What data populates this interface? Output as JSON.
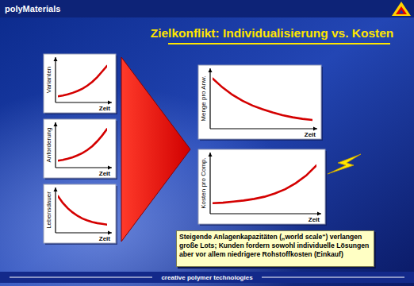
{
  "header": {
    "brand": "polyMaterials",
    "title": "Zielkonflikt: Individualisierung vs. Kosten"
  },
  "chart_data": [
    {
      "type": "line",
      "ylabel": "Varianten",
      "xlabel": "Zeit",
      "color": "#d40000",
      "tick_labels": false,
      "x": [
        0,
        1,
        2,
        3,
        4,
        5,
        6,
        7,
        8,
        9,
        10
      ],
      "xlim": [
        0,
        10
      ],
      "ylim": [
        0,
        10
      ],
      "values": [
        1,
        1.2,
        1.5,
        1.9,
        2.4,
        3,
        3.8,
        4.8,
        6,
        7.5,
        9
      ]
    },
    {
      "type": "line",
      "ylabel": "Anforderung",
      "xlabel": "Zeit",
      "color": "#d40000",
      "tick_labels": false,
      "x": [
        0,
        1,
        2,
        3,
        4,
        5,
        6,
        7,
        8,
        9,
        10
      ],
      "xlim": [
        0,
        10
      ],
      "ylim": [
        0,
        10
      ],
      "values": [
        1.2,
        1.4,
        1.7,
        2.1,
        2.6,
        3.2,
        4,
        5,
        6.3,
        7.8,
        9.5
      ]
    },
    {
      "type": "line",
      "ylabel": "Lebensdauer",
      "xlabel": "Zeit",
      "color": "#d40000",
      "tick_labels": false,
      "x": [
        0,
        1,
        2,
        3,
        4,
        5,
        6,
        7,
        8,
        9,
        10
      ],
      "xlim": [
        0,
        10
      ],
      "ylim": [
        0,
        10
      ],
      "values": [
        9,
        7.2,
        5.8,
        4.7,
        3.8,
        3.1,
        2.6,
        2.2,
        1.9,
        1.7,
        1.5
      ]
    },
    {
      "type": "line",
      "ylabel": "Menge pro Anw.",
      "xlabel": "Zeit",
      "color": "#d40000",
      "tick_labels": false,
      "x": [
        0,
        1,
        2,
        3,
        4,
        5,
        6,
        7,
        8,
        9,
        10
      ],
      "xlim": [
        0,
        10
      ],
      "ylim": [
        0,
        10
      ],
      "values": [
        9,
        7.3,
        5.9,
        4.8,
        3.9,
        3.2,
        2.6,
        2.1,
        1.7,
        1.4,
        1.2
      ]
    },
    {
      "type": "line",
      "ylabel": "Kosten pro Comp.",
      "xlabel": "Zeit",
      "color": "#d40000",
      "tick_labels": false,
      "x": [
        0,
        1,
        2,
        3,
        4,
        5,
        6,
        7,
        8,
        9,
        10
      ],
      "xlim": [
        0,
        10
      ],
      "ylim": [
        0,
        10
      ],
      "values": [
        1.5,
        1.6,
        1.8,
        2,
        2.3,
        2.7,
        3.3,
        4.1,
        5.2,
        6.6,
        8.5
      ]
    }
  ],
  "note": "Steigende Anlagenkapazitäten („world scale“) verlangen große Lots; Kunden fordern sowohl individuelle Lösungen aber vor allem niedrigere Rohstoffkosten (Einkauf)",
  "footer": "creative polymer technologies"
}
